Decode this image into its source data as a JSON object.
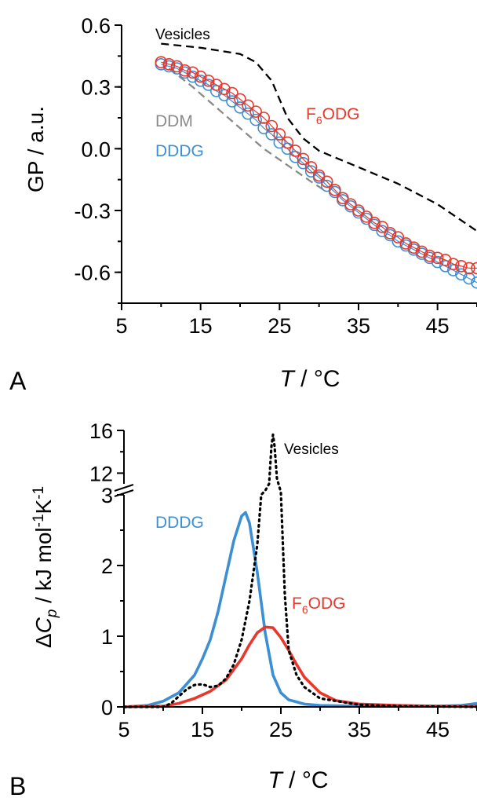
{
  "colors": {
    "red": "#e8382c",
    "blue": "#3d8fd4",
    "gray": "#8a8a8a",
    "black": "#000000"
  },
  "chart_data": [
    {
      "type": "scatter",
      "panel": "A",
      "xlabel_italic": "T",
      "xlabel_rest": " / °C",
      "ylabel": "GP / a.u.",
      "xlim": [
        5,
        50
      ],
      "ylim": [
        -0.75,
        0.6
      ],
      "xticks": [
        5,
        15,
        25,
        35,
        45
      ],
      "xtick_labels": [
        "5",
        "15",
        "25",
        "35",
        "45"
      ],
      "yticks": [
        0.6,
        0.3,
        0.0,
        -0.3,
        -0.6
      ],
      "ytick_labels": [
        "0.6",
        "0.3",
        "0.0",
        "-0.3",
        "-0.6"
      ],
      "series": [
        {
          "name": "Vesicles",
          "color": "#000000",
          "style": "dashed",
          "marker": "none",
          "x": [
            10,
            15,
            20,
            22,
            24,
            25,
            26,
            28,
            30,
            35,
            40,
            45,
            50
          ],
          "y": [
            0.51,
            0.49,
            0.46,
            0.42,
            0.33,
            0.24,
            0.15,
            0.05,
            -0.01,
            -0.09,
            -0.17,
            -0.27,
            -0.4
          ]
        },
        {
          "name": "DDM",
          "color": "#8a8a8a",
          "style": "dashed",
          "marker": "none",
          "x": [
            11,
            14,
            17,
            20,
            23,
            26,
            29,
            31
          ],
          "y": [
            0.39,
            0.3,
            0.2,
            0.1,
            0.0,
            -0.08,
            -0.16,
            -0.21
          ]
        },
        {
          "name": "DDDG",
          "color": "#3d8fd4",
          "style": "circles",
          "marker": "circle",
          "x": [
            10,
            11,
            12,
            13,
            14,
            15,
            16,
            17,
            18,
            19,
            20,
            21,
            22,
            23,
            24,
            25,
            26,
            27,
            28,
            29,
            30,
            31,
            32,
            33,
            34,
            35,
            36,
            37,
            38,
            39,
            40,
            41,
            42,
            43,
            44,
            45,
            46,
            47,
            48,
            49,
            50
          ],
          "y": [
            0.41,
            0.4,
            0.39,
            0.37,
            0.35,
            0.33,
            0.31,
            0.28,
            0.26,
            0.23,
            0.2,
            0.17,
            0.14,
            0.1,
            0.07,
            0.03,
            0.0,
            -0.04,
            -0.07,
            -0.11,
            -0.14,
            -0.18,
            -0.21,
            -0.25,
            -0.28,
            -0.31,
            -0.34,
            -0.37,
            -0.4,
            -0.42,
            -0.45,
            -0.47,
            -0.49,
            -0.51,
            -0.53,
            -0.55,
            -0.57,
            -0.59,
            -0.61,
            -0.63,
            -0.65
          ]
        },
        {
          "name": "F6ODG",
          "color": "#e8382c",
          "style": "circles",
          "marker": "circle",
          "x": [
            10,
            11,
            12,
            13,
            14,
            15,
            16,
            17,
            18,
            19,
            20,
            21,
            22,
            23,
            24,
            25,
            26,
            27,
            28,
            29,
            30,
            31,
            32,
            33,
            34,
            35,
            36,
            37,
            38,
            39,
            40,
            41,
            42,
            43,
            44,
            45,
            46,
            47,
            48,
            49,
            50
          ],
          "y": [
            0.42,
            0.41,
            0.4,
            0.38,
            0.37,
            0.35,
            0.33,
            0.31,
            0.29,
            0.27,
            0.24,
            0.21,
            0.18,
            0.15,
            0.11,
            0.07,
            0.03,
            -0.01,
            -0.05,
            -0.09,
            -0.13,
            -0.16,
            -0.2,
            -0.24,
            -0.27,
            -0.3,
            -0.33,
            -0.36,
            -0.38,
            -0.41,
            -0.43,
            -0.46,
            -0.48,
            -0.5,
            -0.52,
            -0.53,
            -0.54,
            -0.56,
            -0.57,
            -0.58,
            -0.58
          ]
        }
      ],
      "annotations": [
        {
          "text": "Vesicles",
          "color": "#000000"
        },
        {
          "text": "DDM",
          "color": "#8a8a8a"
        },
        {
          "text": "DDDG",
          "color": "#3d8fd4"
        },
        {
          "text_main": "F",
          "text_sub": "6",
          "text_tail": "ODG",
          "color": "#e8382c"
        }
      ]
    },
    {
      "type": "line",
      "panel": "B",
      "xlabel_italic": "T",
      "xlabel_rest": " / °C",
      "ylabel_delta": "Δ",
      "ylabel_c": "C",
      "ylabel_p": "p",
      "ylabel_unit": " / kJ mol",
      "ylabel_exp1": "-1",
      "ylabel_k": "K",
      "ylabel_exp2": "-1",
      "xlim": [
        5,
        50
      ],
      "ylim_lower": [
        0,
        3
      ],
      "ylim_upper": [
        11,
        16
      ],
      "axis_break": true,
      "xticks": [
        5,
        15,
        25,
        35,
        45
      ],
      "xtick_labels": [
        "5",
        "15",
        "25",
        "35",
        "45"
      ],
      "yticks_lower": [
        0,
        1,
        2,
        3
      ],
      "ytick_labels_lower": [
        "0",
        "1",
        "2",
        "3"
      ],
      "yticks_upper": [
        12,
        16
      ],
      "ytick_labels_upper": [
        "12",
        "16"
      ],
      "series": [
        {
          "name": "DDDG",
          "color": "#3d8fd4",
          "style": "solid",
          "x": [
            5,
            8,
            10,
            12,
            14,
            15,
            16,
            17,
            18,
            19,
            20,
            20.5,
            21,
            22,
            23,
            24,
            25,
            26,
            28,
            30,
            35,
            40,
            45,
            48,
            50
          ],
          "y": [
            0,
            0.02,
            0.08,
            0.2,
            0.45,
            0.68,
            0.95,
            1.35,
            1.85,
            2.35,
            2.7,
            2.75,
            2.6,
            1.9,
            1.05,
            0.45,
            0.2,
            0.1,
            0.04,
            0.02,
            0.01,
            0.01,
            0.01,
            0.02,
            0.05
          ]
        },
        {
          "name": "F6ODG",
          "color": "#e8382c",
          "style": "solid",
          "x": [
            5,
            10,
            12,
            14,
            16,
            18,
            20,
            21,
            22,
            23,
            24,
            25,
            26,
            27,
            28,
            30,
            32,
            35,
            40,
            45,
            50
          ],
          "y": [
            0,
            0.01,
            0.05,
            0.12,
            0.22,
            0.38,
            0.68,
            0.88,
            1.05,
            1.13,
            1.12,
            0.98,
            0.8,
            0.6,
            0.42,
            0.2,
            0.09,
            0.04,
            0.02,
            0.01,
            0.01
          ]
        },
        {
          "name": "Vesicles",
          "color": "#000000",
          "style": "dotted",
          "x": [
            5,
            10,
            11,
            12,
            13,
            14,
            15,
            16,
            17,
            18,
            19,
            20,
            21,
            22,
            22.5,
            23,
            23.5,
            23.8,
            24,
            24.2,
            24.5,
            25,
            25.5,
            26,
            27,
            28,
            30,
            35,
            40,
            50
          ],
          "y": [
            0,
            0.0,
            0.05,
            0.15,
            0.25,
            0.31,
            0.32,
            0.28,
            0.3,
            0.4,
            0.6,
            0.95,
            1.5,
            2.3,
            3.05,
            6.0,
            11.0,
            14.5,
            15.6,
            14.5,
            11.5,
            5.0,
            1.6,
            0.8,
            0.45,
            0.28,
            0.12,
            0.03,
            0.01,
            0.0
          ]
        }
      ],
      "annotations": [
        {
          "text": "Vesicles",
          "color": "#000000"
        },
        {
          "text": "DDDG",
          "color": "#3d8fd4"
        },
        {
          "text_main": "F",
          "text_sub": "6",
          "text_tail": "ODG",
          "color": "#e8382c"
        }
      ]
    }
  ],
  "panel_labels": [
    "A",
    "B"
  ]
}
